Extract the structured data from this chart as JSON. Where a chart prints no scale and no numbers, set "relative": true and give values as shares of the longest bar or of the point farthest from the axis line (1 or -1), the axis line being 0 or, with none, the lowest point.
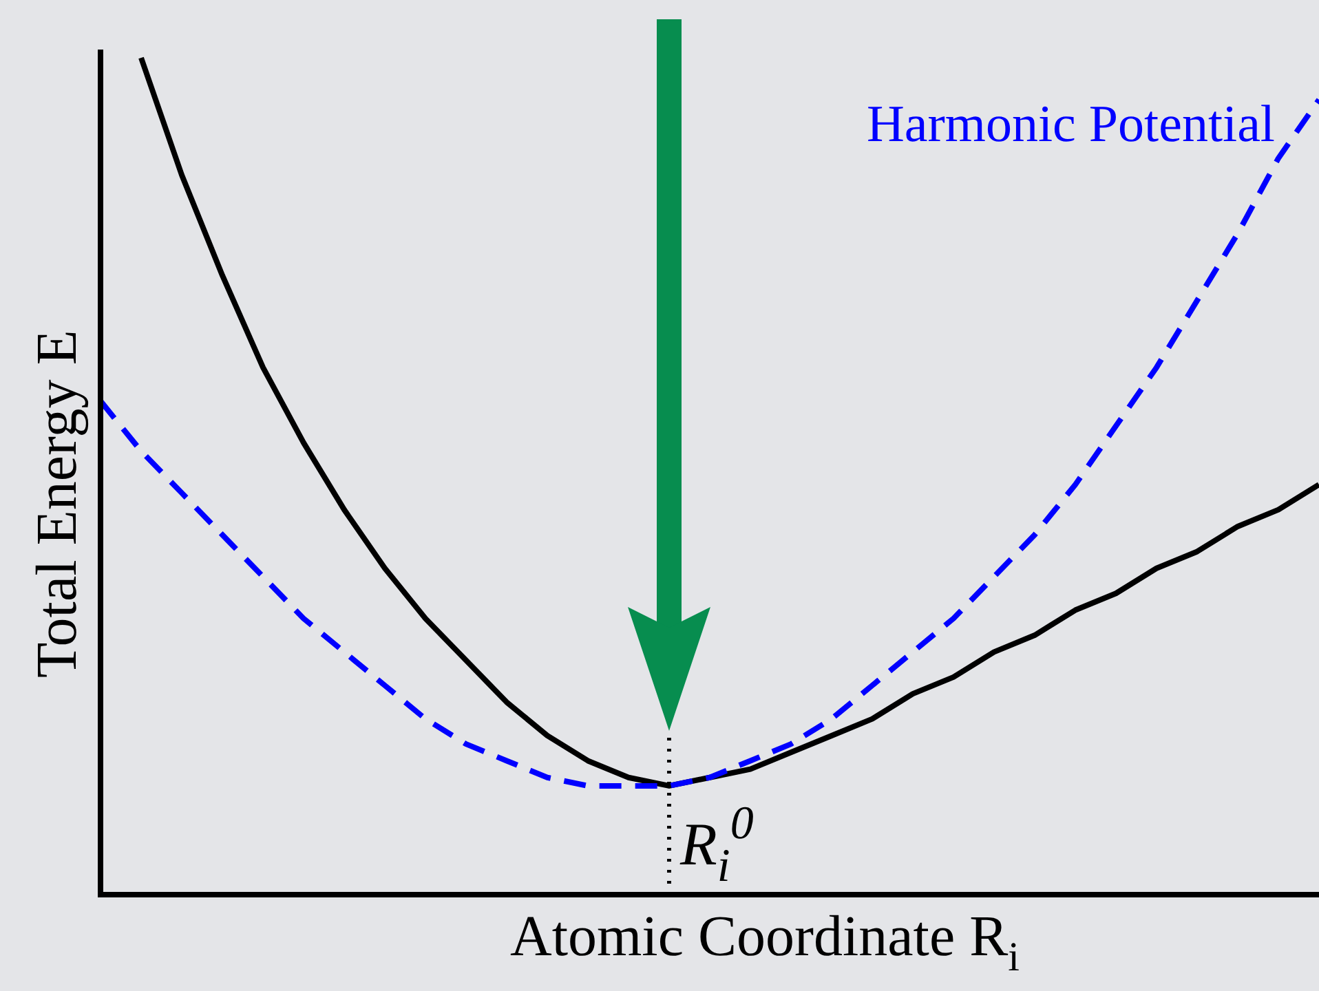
{
  "chart_data": {
    "type": "line",
    "relative": true,
    "xlabel": "Atomic Coordinate R$_{i}$",
    "ylabel": "Total Energy E",
    "categories": [
      null,
      null,
      null,
      null,
      null,
      null,
      null,
      null,
      null,
      null,
      null,
      null,
      null,
      null,
      null,
      null,
      null,
      null,
      null,
      null,
      null,
      null,
      null,
      null,
      null,
      null,
      null,
      null,
      null,
      null,
      null
    ],
    "series": [
      {
        "color": "#000000",
        "line_style": "solid",
        "values": [
          null,
          1.0,
          0.86,
          0.74,
          0.63,
          0.54,
          0.46,
          0.39,
          0.33,
          0.28,
          0.23,
          0.19,
          0.16,
          0.14,
          0.13,
          0.14,
          0.15,
          0.17,
          0.19,
          0.21,
          0.24,
          0.26,
          0.29,
          0.31,
          0.34,
          0.36,
          0.39,
          0.41,
          0.44,
          0.46,
          0.49
        ]
      },
      {
        "name": "Harmonic Potential",
        "color": "#0000ff",
        "line_style": "dashed",
        "values": [
          0.59,
          0.53,
          0.48,
          0.43,
          0.38,
          0.33,
          0.29,
          0.25,
          0.21,
          0.18,
          0.16,
          0.14,
          0.13,
          0.13,
          0.13,
          0.14,
          0.16,
          0.18,
          0.21,
          0.25,
          0.29,
          0.33,
          0.38,
          0.43,
          0.49,
          0.56,
          0.63,
          0.71,
          0.79,
          0.88,
          0.95
        ]
      }
    ],
    "ref_lines": [
      {
        "axis": "x",
        "label": "R$_{i}$$^{0}$",
        "line_style": "dotted",
        "color": "#000000"
      }
    ]
  }
}
